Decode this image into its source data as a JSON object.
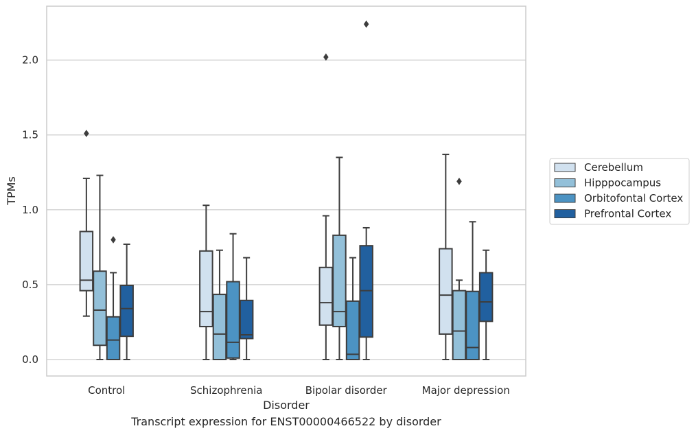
{
  "caption": "Transcript expression for ENST00000466522 by disorder",
  "colors": {
    "Cerebellum": "#d1e1ef",
    "Hipppocampus": "#93c0d9",
    "Orbitofontal Cortex": "#4c93c3",
    "Prefrontal Cortex": "#21609f",
    "line": "#3d3d3d",
    "grid": "#cccccc"
  },
  "chart_data": {
    "type": "box",
    "title": "",
    "xlabel": "Disorder",
    "ylabel": "TPMs",
    "ylim": [
      -0.11,
      2.36
    ],
    "yticks": [
      0.0,
      0.5,
      1.0,
      1.5,
      2.0
    ],
    "yticklabels": [
      "0.0",
      "0.5",
      "1.0",
      "1.5",
      "2.0"
    ],
    "grid": "horizontal",
    "legend_position": "right, outside the plot",
    "categories": [
      "Control",
      "Schizophrenia",
      "Bipolar disorder",
      "Major depression"
    ],
    "series": [
      {
        "name": "Cerebellum",
        "boxes": [
          {
            "whislo": 0.29,
            "q1": 0.46,
            "med": 0.53,
            "q3": 0.855,
            "whishi": 1.21,
            "fliers": [
              1.51
            ]
          },
          {
            "whislo": 0.0,
            "q1": 0.22,
            "med": 0.32,
            "q3": 0.725,
            "whishi": 1.03,
            "fliers": []
          },
          {
            "whislo": 0.0,
            "q1": 0.23,
            "med": 0.38,
            "q3": 0.615,
            "whishi": 0.96,
            "fliers": [
              2.02
            ]
          },
          {
            "whislo": 0.0,
            "q1": 0.17,
            "med": 0.43,
            "q3": 0.74,
            "whishi": 1.37,
            "fliers": []
          }
        ]
      },
      {
        "name": "Hipppocampus",
        "boxes": [
          {
            "whislo": 0.0,
            "q1": 0.095,
            "med": 0.33,
            "q3": 0.59,
            "whishi": 1.23,
            "fliers": []
          },
          {
            "whislo": 0.0,
            "q1": 0.0,
            "med": 0.17,
            "q3": 0.435,
            "whishi": 0.73,
            "fliers": []
          },
          {
            "whislo": 0.0,
            "q1": 0.22,
            "med": 0.32,
            "q3": 0.83,
            "whishi": 1.35,
            "fliers": []
          },
          {
            "whislo": 0.0,
            "q1": 0.0,
            "med": 0.19,
            "q3": 0.46,
            "whishi": 0.53,
            "fliers": [
              1.19
            ]
          }
        ]
      },
      {
        "name": "Orbitofontal Cortex",
        "boxes": [
          {
            "whislo": 0.0,
            "q1": 0.0,
            "med": 0.13,
            "q3": 0.285,
            "whishi": 0.58,
            "fliers": [
              0.8
            ]
          },
          {
            "whislo": 0.0,
            "q1": 0.01,
            "med": 0.115,
            "q3": 0.52,
            "whishi": 0.84,
            "fliers": []
          },
          {
            "whislo": 0.0,
            "q1": 0.0,
            "med": 0.035,
            "q3": 0.39,
            "whishi": 0.68,
            "fliers": []
          },
          {
            "whislo": 0.0,
            "q1": 0.0,
            "med": 0.08,
            "q3": 0.455,
            "whishi": 0.92,
            "fliers": []
          }
        ]
      },
      {
        "name": "Prefrontal Cortex",
        "boxes": [
          {
            "whislo": 0.0,
            "q1": 0.155,
            "med": 0.34,
            "q3": 0.495,
            "whishi": 0.77,
            "fliers": []
          },
          {
            "whislo": 0.0,
            "q1": 0.14,
            "med": 0.165,
            "q3": 0.395,
            "whishi": 0.68,
            "fliers": []
          },
          {
            "whislo": 0.0,
            "q1": 0.15,
            "med": 0.46,
            "q3": 0.76,
            "whishi": 0.88,
            "fliers": [
              2.24
            ]
          },
          {
            "whislo": 0.0,
            "q1": 0.255,
            "med": 0.385,
            "q3": 0.58,
            "whishi": 0.73,
            "fliers": []
          }
        ]
      }
    ]
  }
}
